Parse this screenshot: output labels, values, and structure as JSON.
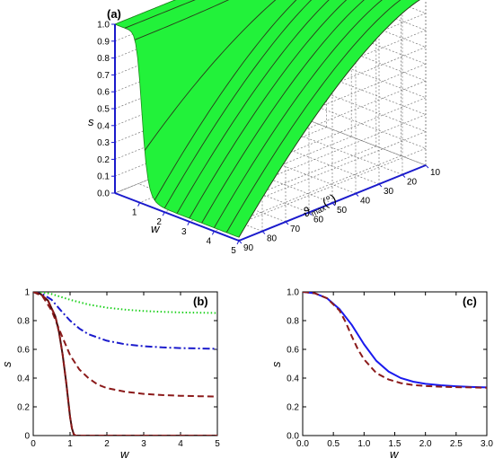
{
  "chart_data": [
    {
      "panel_label": "(a)",
      "type": "surface",
      "x_label": "w",
      "y_label": "s",
      "z_label_symbol": "ϑ",
      "z_label_sub": "max",
      "z_label_unit": "(°)",
      "x_ticks": [
        "1",
        "2",
        "3",
        "4",
        "5"
      ],
      "y_ticks": [
        "0.0",
        "0.1",
        "0.2",
        "0.3",
        "0.4",
        "0.5",
        "0.6",
        "0.7",
        "0.8",
        "0.9",
        "1.0"
      ],
      "z_ticks": [
        "10",
        "20",
        "30",
        "40",
        "50",
        "60",
        "70",
        "80",
        "90"
      ],
      "surface_color": "#22f23a",
      "contour_w": [
        0.4,
        0.8,
        1.2,
        1.6,
        2.0,
        2.5,
        3.0,
        3.5,
        4.0,
        4.5,
        5.0
      ]
    },
    {
      "panel_label": "(b)",
      "type": "line",
      "xlabel": "w",
      "ylabel": "s",
      "xlim": [
        0,
        5
      ],
      "ylim": [
        0,
        1
      ],
      "x_ticks": [
        "0",
        "1",
        "2",
        "3",
        "4",
        "5"
      ],
      "y_ticks": [
        "0",
        "0.2",
        "0.4",
        "0.6",
        "0.8",
        "1"
      ],
      "series": [
        {
          "style": "dotted",
          "color": "#1fd11f",
          "x": [
            0,
            0.25,
            0.5,
            0.75,
            1,
            1.5,
            2,
            2.5,
            3,
            3.5,
            4,
            4.5,
            5
          ],
          "y": [
            1.0,
            0.997,
            0.985,
            0.965,
            0.945,
            0.912,
            0.89,
            0.876,
            0.867,
            0.861,
            0.857,
            0.855,
            0.853
          ]
        },
        {
          "style": "dashdot",
          "color": "#1a1acc",
          "x": [
            0,
            0.25,
            0.5,
            0.75,
            1,
            1.25,
            1.5,
            2,
            2.5,
            3,
            3.5,
            4,
            4.5,
            5
          ],
          "y": [
            1.0,
            0.985,
            0.945,
            0.87,
            0.8,
            0.745,
            0.705,
            0.66,
            0.635,
            0.622,
            0.614,
            0.609,
            0.606,
            0.604
          ]
        },
        {
          "style": "dashed",
          "color": "#8b1a1a",
          "x": [
            0,
            0.25,
            0.5,
            0.75,
            1,
            1.25,
            1.5,
            1.75,
            2,
            2.5,
            3,
            3.5,
            4,
            4.5,
            5
          ],
          "y": [
            1.0,
            0.97,
            0.87,
            0.71,
            0.56,
            0.46,
            0.4,
            0.355,
            0.33,
            0.305,
            0.29,
            0.282,
            0.277,
            0.274,
            0.272
          ]
        },
        {
          "style": "solid",
          "color": "#4a0d0d",
          "x": [
            0,
            0.2,
            0.4,
            0.6,
            0.7,
            0.8,
            0.9,
            1.0,
            1.05,
            1.1,
            1.15,
            2,
            3,
            4,
            5
          ],
          "y": [
            1.0,
            0.985,
            0.94,
            0.83,
            0.72,
            0.56,
            0.36,
            0.13,
            0.05,
            0.01,
            0.0,
            0.0,
            0.0,
            0.0,
            0.0
          ]
        },
        {
          "style": "solid",
          "color": "#8b1a1a",
          "x": [
            0,
            0.2,
            0.4,
            0.6,
            0.7,
            0.8,
            0.9,
            1.0,
            1.05,
            1.1,
            1.15,
            2,
            3,
            4,
            5
          ],
          "y": [
            1.0,
            0.985,
            0.94,
            0.83,
            0.72,
            0.56,
            0.36,
            0.13,
            0.05,
            0.01,
            0.0,
            0.0,
            0.0,
            0.0,
            0.0
          ],
          "dash": "6,4"
        }
      ]
    },
    {
      "panel_label": "(c)",
      "type": "line",
      "xlabel": "w",
      "ylabel": "s",
      "xlim": [
        0,
        3
      ],
      "ylim": [
        0,
        1
      ],
      "x_ticks": [
        "0.0",
        "0.5",
        "1.0",
        "1.5",
        "2.0",
        "2.5",
        "3.0"
      ],
      "y_ticks": [
        "0.0",
        "0.2",
        "0.4",
        "0.6",
        "0.8",
        "1.0"
      ],
      "series": [
        {
          "style": "solid",
          "color": "#1a1aee",
          "x": [
            0,
            0.2,
            0.4,
            0.6,
            0.8,
            1.0,
            1.2,
            1.4,
            1.6,
            1.8,
            2.0,
            2.25,
            2.5,
            2.75,
            3.0
          ],
          "y": [
            1.0,
            0.99,
            0.955,
            0.88,
            0.77,
            0.635,
            0.52,
            0.445,
            0.4,
            0.375,
            0.36,
            0.35,
            0.343,
            0.338,
            0.335
          ]
        },
        {
          "style": "dashed",
          "color": "#8b1a1a",
          "x": [
            0,
            0.2,
            0.4,
            0.6,
            0.7,
            0.8,
            0.9,
            1.0,
            1.2,
            1.4,
            1.6,
            1.8,
            2.0,
            2.25,
            2.5,
            2.75,
            3.0
          ],
          "y": [
            1.0,
            0.99,
            0.955,
            0.87,
            0.79,
            0.69,
            0.6,
            0.53,
            0.435,
            0.39,
            0.365,
            0.352,
            0.345,
            0.34,
            0.337,
            0.335,
            0.333
          ]
        }
      ]
    }
  ]
}
